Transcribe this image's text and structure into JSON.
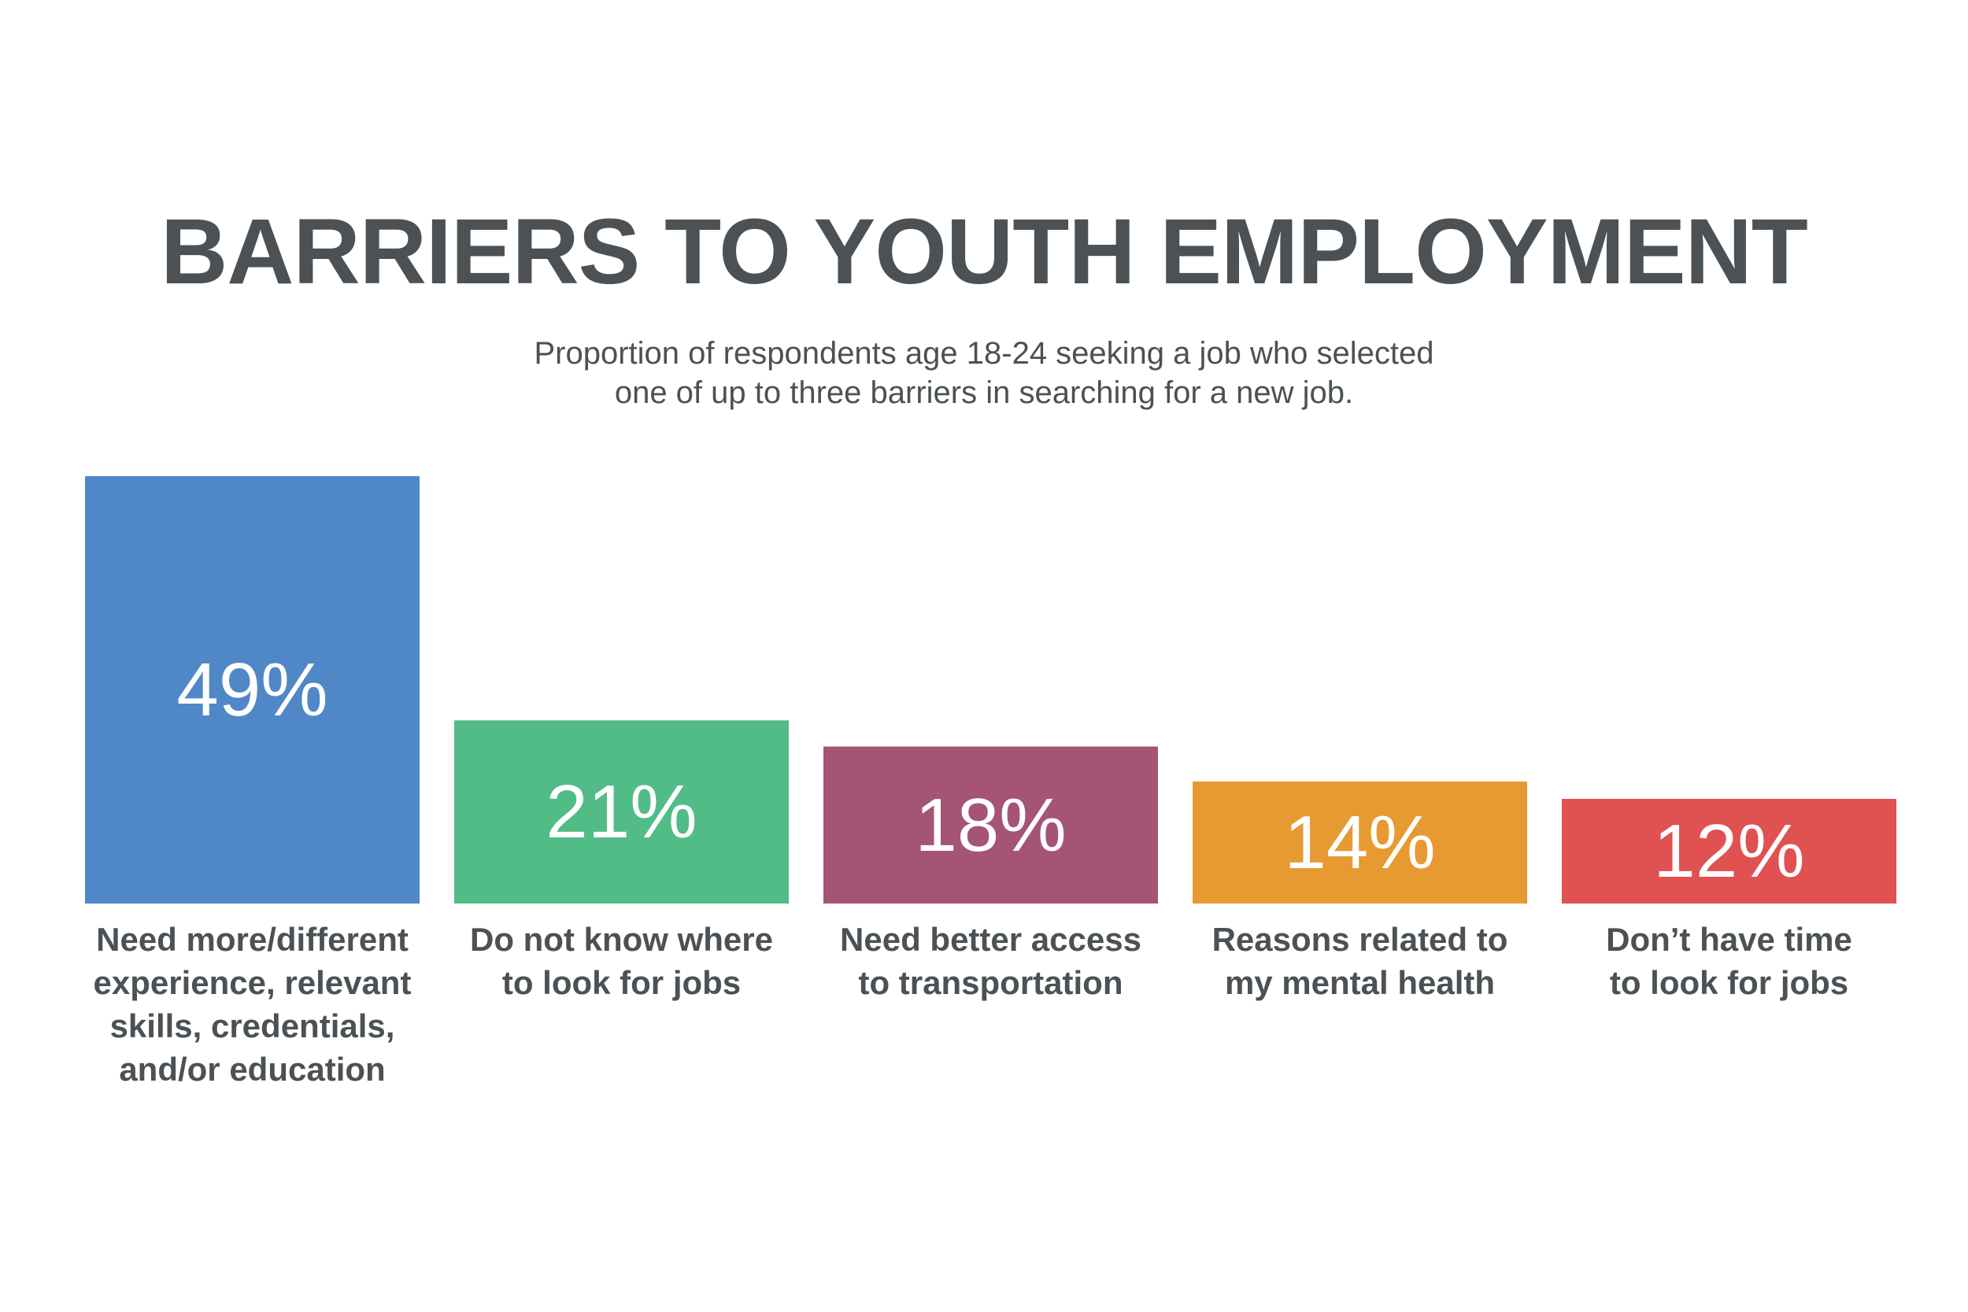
{
  "chart_data": {
    "type": "bar",
    "title": "BARRIERS TO YOUTH EMPLOYMENT",
    "subtitle_lines": [
      "Proportion of respondents age 18-24 seeking a job who selected",
      "one of up to three barriers in searching for a new job."
    ],
    "unit": "%",
    "ylim": [
      0,
      49
    ],
    "grid": false,
    "categories": [
      [
        "Need more/different",
        "experience, relevant",
        "skills, credentials,",
        "and/or education"
      ],
      [
        "Do not know where",
        "to look for jobs"
      ],
      [
        "Need better access",
        "to transportation"
      ],
      [
        "Reasons related to",
        "my mental health"
      ],
      [
        "Don’t have time",
        "to look for jobs"
      ]
    ],
    "values": [
      49,
      21,
      18,
      14,
      12
    ],
    "value_labels": [
      "49%",
      "21%",
      "18%",
      "14%",
      "12%"
    ],
    "colors": [
      "#5087c6",
      "#52bc87",
      "#a55475",
      "#e79a32",
      "#e05152"
    ]
  }
}
